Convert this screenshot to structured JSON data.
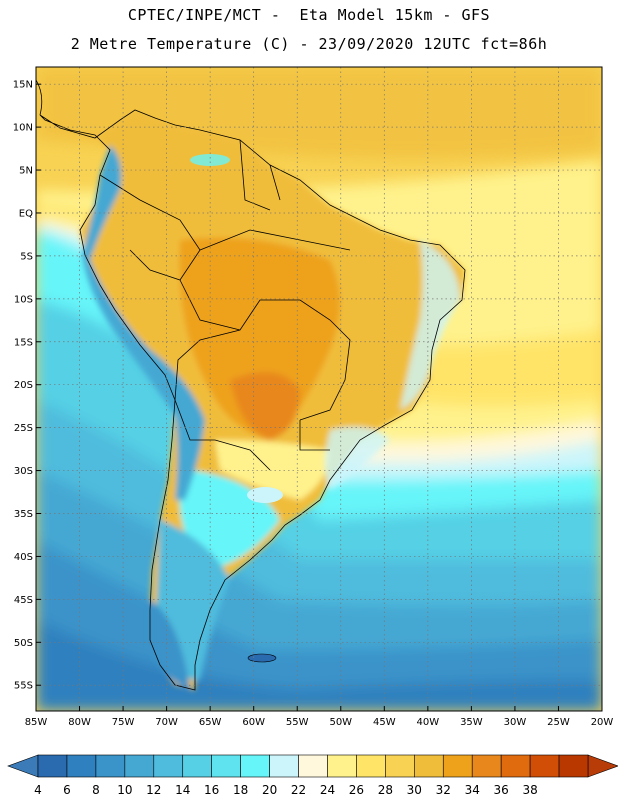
{
  "header": {
    "line1": "CPTEC/INPE/MCT -  Eta Model 15km - GFS",
    "line2": "2 Metre Temperature (C) - 23/09/2020 12UTC fct=86h"
  },
  "map": {
    "lon_range": [
      -85,
      -20
    ],
    "lat_range": [
      -58,
      17
    ],
    "lat_ticks": [
      {
        "value": 15,
        "label": "15N"
      },
      {
        "value": 10,
        "label": "10N"
      },
      {
        "value": 5,
        "label": "5N"
      },
      {
        "value": 0,
        "label": "EQ"
      },
      {
        "value": -5,
        "label": "5S"
      },
      {
        "value": -10,
        "label": "10S"
      },
      {
        "value": -15,
        "label": "15S"
      },
      {
        "value": -20,
        "label": "20S"
      },
      {
        "value": -25,
        "label": "25S"
      },
      {
        "value": -30,
        "label": "30S"
      },
      {
        "value": -35,
        "label": "35S"
      },
      {
        "value": -40,
        "label": "40S"
      },
      {
        "value": -45,
        "label": "45S"
      },
      {
        "value": -50,
        "label": "50S"
      },
      {
        "value": -55,
        "label": "55S"
      }
    ],
    "lon_ticks": [
      {
        "value": -85,
        "label": "85W"
      },
      {
        "value": -80,
        "label": "80W"
      },
      {
        "value": -75,
        "label": "75W"
      },
      {
        "value": -70,
        "label": "70W"
      },
      {
        "value": -65,
        "label": "65W"
      },
      {
        "value": -60,
        "label": "60W"
      },
      {
        "value": -55,
        "label": "55W"
      },
      {
        "value": -50,
        "label": "50W"
      },
      {
        "value": -45,
        "label": "45W"
      },
      {
        "value": -40,
        "label": "40W"
      },
      {
        "value": -35,
        "label": "35W"
      },
      {
        "value": -30,
        "label": "30W"
      },
      {
        "value": -25,
        "label": "25W"
      },
      {
        "value": -20,
        "label": "20W"
      }
    ],
    "gridlines": "dotted"
  },
  "colorbar": {
    "levels": [
      "4",
      "6",
      "8",
      "10",
      "12",
      "14",
      "16",
      "18",
      "20",
      "22",
      "24",
      "26",
      "28",
      "30",
      "32",
      "34",
      "36",
      "38"
    ],
    "colors": [
      "#2a6bb0",
      "#2f80be",
      "#3a93c9",
      "#45a8d3",
      "#4fbcdd",
      "#55d0e5",
      "#5fe3ee",
      "#66f5f9",
      "#ccf5fb",
      "#fff8dc",
      "#fff28c",
      "#ffe468",
      "#f8d253",
      "#f0bd3a",
      "#eea21c",
      "#e8881c",
      "#e06a0e",
      "#d04e06",
      "#b83800"
    ],
    "low_color": "#3a7bb8",
    "high_color": "#b83c08"
  }
}
